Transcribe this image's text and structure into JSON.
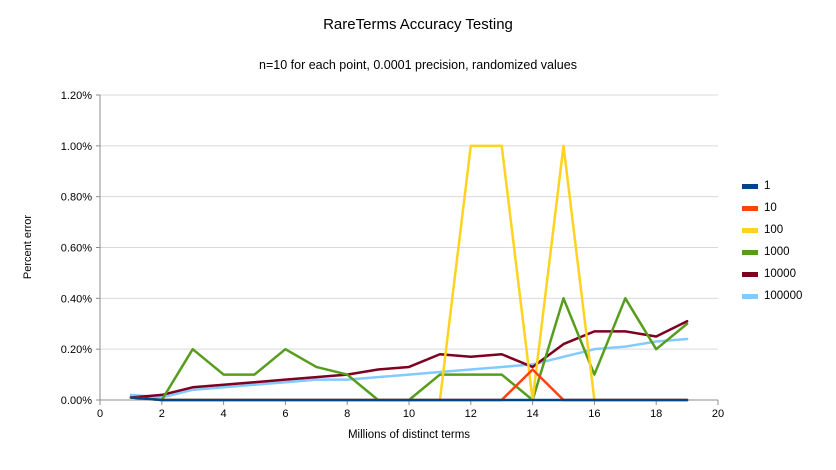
{
  "chart_data": {
    "type": "line",
    "title": "RareTerms Accuracy Testing",
    "subtitle": "n=10 for each point, 0.0001 precision, randomized values",
    "xlabel": "Millions of distinct terms",
    "ylabel": "Percent error",
    "xlim": [
      0,
      20
    ],
    "ylim_percent": [
      0,
      1.2
    ],
    "x_ticks": [
      0,
      2,
      4,
      6,
      8,
      10,
      12,
      14,
      16,
      18,
      20
    ],
    "y_ticks_percent": [
      0,
      0.2,
      0.4,
      0.6,
      0.8,
      1.0,
      1.2
    ],
    "y_tick_labels": [
      "0.00%",
      "0.20%",
      "0.40%",
      "0.60%",
      "0.80%",
      "1.00%",
      "1.20%"
    ],
    "grid": "horizontal",
    "legend_position": "right",
    "x": [
      1,
      2,
      3,
      4,
      5,
      6,
      7,
      8,
      9,
      10,
      11,
      12,
      13,
      14,
      15,
      16,
      17,
      18,
      19
    ],
    "series": [
      {
        "name": "1",
        "color": "#004586",
        "values_percent": [
          0.01,
          0,
          0,
          0,
          0,
          0,
          0,
          0,
          0,
          0,
          0,
          0,
          0,
          0,
          0,
          0,
          0,
          0,
          0
        ]
      },
      {
        "name": "10",
        "color": "#ff420e",
        "values_percent": [
          0.01,
          0,
          0,
          0,
          0,
          0,
          0,
          0,
          0,
          0,
          0,
          0,
          0,
          0.12,
          0,
          0,
          0,
          0,
          0
        ]
      },
      {
        "name": "100",
        "color": "#ffd320",
        "values_percent": [
          0.01,
          0,
          0,
          0,
          0,
          0,
          0,
          0,
          0,
          0,
          0,
          1.0,
          1.0,
          0,
          1.0,
          0,
          0,
          0,
          0
        ]
      },
      {
        "name": "1000",
        "color": "#579d1c",
        "values_percent": [
          0.01,
          0,
          0.2,
          0.1,
          0.1,
          0.2,
          0.13,
          0.1,
          0,
          0,
          0.1,
          0.1,
          0.1,
          0,
          0.4,
          0.1,
          0.4,
          0.2,
          0.3
        ]
      },
      {
        "name": "10000",
        "color": "#7e0021",
        "values_percent": [
          0.01,
          0.02,
          0.05,
          0.06,
          0.07,
          0.08,
          0.09,
          0.1,
          0.12,
          0.13,
          0.18,
          0.17,
          0.18,
          0.13,
          0.22,
          0.27,
          0.27,
          0.25,
          0.31
        ]
      },
      {
        "name": "100000",
        "color": "#83caff",
        "values_percent": [
          0.02,
          0.01,
          0.04,
          0.05,
          0.06,
          0.07,
          0.08,
          0.08,
          0.09,
          0.1,
          0.11,
          0.12,
          0.13,
          0.14,
          0.17,
          0.2,
          0.21,
          0.23,
          0.24
        ]
      }
    ],
    "colors": {
      "gridline": "#d9d9d9",
      "axis": "#8c8c8c",
      "text": "#000000"
    }
  }
}
